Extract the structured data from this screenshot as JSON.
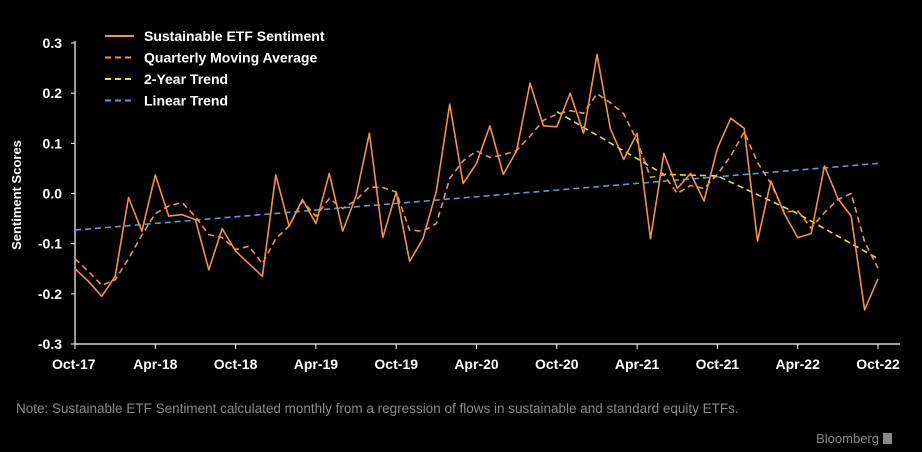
{
  "chart_data": {
    "type": "line",
    "ylabel": "Sentiment Scores",
    "ylim": [
      -0.3,
      0.3
    ],
    "yticks": [
      "0.3",
      "0.2",
      "0.1",
      "0.0",
      "-0.1",
      "-0.2",
      "-0.3"
    ],
    "ytick_values": [
      0.3,
      0.2,
      0.1,
      0.0,
      -0.1,
      -0.2,
      -0.3
    ],
    "xticks": [
      "Oct-17",
      "Apr-18",
      "Oct-18",
      "Apr-19",
      "Oct-19",
      "Apr-20",
      "Oct-20",
      "Apr-21",
      "Oct-21",
      "Apr-22",
      "Oct-22"
    ],
    "xtick_index": [
      0,
      6,
      12,
      18,
      24,
      30,
      36,
      42,
      48,
      54,
      60
    ],
    "legend": [
      "Sustainable ETF Sentiment",
      "Quarterly Moving Average",
      "2-Year Trend",
      "Linear Trend"
    ],
    "series": [
      {
        "name": "Sustainable ETF Sentiment",
        "color": "#f0914f",
        "style": "solid",
        "values": [
          -0.15,
          -0.175,
          -0.205,
          -0.165,
          -0.008,
          -0.075,
          0.037,
          -0.045,
          -0.042,
          -0.052,
          -0.152,
          -0.07,
          -0.115,
          -0.14,
          -0.165,
          0.037,
          -0.065,
          -0.012,
          -0.06,
          0.04,
          -0.075,
          -0.005,
          0.12,
          -0.088,
          0.003,
          -0.135,
          -0.09,
          0.005,
          0.178,
          0.02,
          0.06,
          0.135,
          0.038,
          0.085,
          0.22,
          0.135,
          0.133,
          0.2,
          0.12,
          0.277,
          0.13,
          0.068,
          0.12,
          -0.09,
          0.08,
          0.01,
          0.04,
          -0.015,
          0.09,
          0.15,
          0.13,
          -0.095,
          0.025,
          -0.04,
          -0.088,
          -0.08,
          0.055,
          -0.01,
          -0.045,
          -0.232,
          -0.17
        ]
      },
      {
        "name": "Quarterly Moving Average",
        "color": "#f0914f",
        "style": "dashed",
        "values": [
          -0.13,
          -0.155,
          -0.183,
          -0.172,
          -0.13,
          -0.083,
          -0.04,
          -0.025,
          -0.018,
          -0.046,
          -0.082,
          -0.088,
          -0.112,
          -0.105,
          -0.14,
          -0.09,
          -0.065,
          -0.015,
          -0.045,
          -0.01,
          -0.03,
          -0.013,
          0.013,
          0.012,
          0.003,
          -0.073,
          -0.075,
          -0.06,
          0.03,
          0.065,
          0.085,
          0.072,
          0.077,
          0.086,
          0.114,
          0.146,
          0.158,
          0.165,
          0.16,
          0.199,
          0.181,
          0.159,
          0.105,
          0.032,
          0.037,
          0.0,
          0.016,
          0.01,
          0.038,
          0.075,
          0.123,
          0.062,
          0.02,
          -0.037,
          -0.034,
          -0.069,
          -0.038,
          -0.012,
          0.0,
          -0.096,
          -0.149
        ]
      },
      {
        "name": "2-Year Trend",
        "color": "#e8dd3c",
        "style": "dashed",
        "x_index": [
          36,
          44,
          48,
          54,
          60
        ],
        "values": [
          0.163,
          0.038,
          0.035,
          -0.04,
          -0.13
        ]
      },
      {
        "name": "Linear Trend",
        "color": "#5b9bd5",
        "style": "dashed",
        "x_index": [
          0,
          60
        ],
        "values": [
          -0.073,
          0.06
        ]
      }
    ]
  },
  "note": "Note: Sustainable ETF Sentiment calculated monthly from a regression of flows in sustainable and standard equity ETFs.",
  "brand": "Bloomberg"
}
